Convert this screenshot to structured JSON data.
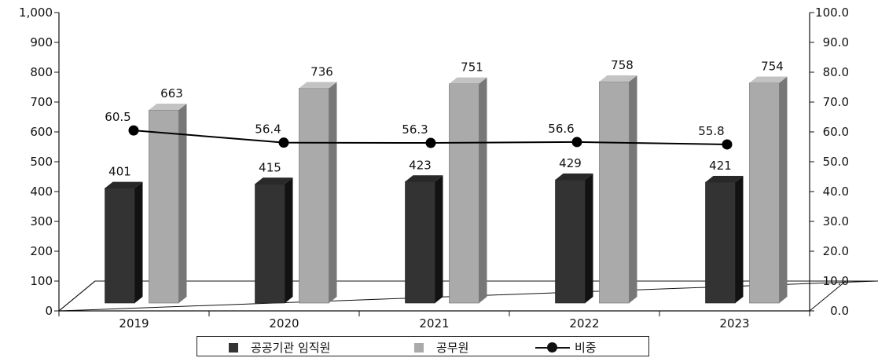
{
  "chart_data": {
    "type": "bar",
    "categories": [
      "2019",
      "2020",
      "2021",
      "2022",
      "2023"
    ],
    "series": [
      {
        "name": "공공기관 임직원",
        "kind": "bar",
        "axis": "left",
        "color": "#333333",
        "values": [
          401,
          415,
          423,
          429,
          421
        ]
      },
      {
        "name": "공무원",
        "kind": "bar",
        "axis": "left",
        "color": "#aaaaaa",
        "values": [
          663,
          736,
          751,
          758,
          754
        ]
      },
      {
        "name": "비중",
        "kind": "line",
        "axis": "right",
        "color": "#000000",
        "values": [
          60.5,
          56.4,
          56.3,
          56.6,
          55.8
        ]
      }
    ],
    "y_left": {
      "min": 0,
      "max": 1000,
      "step": 100,
      "tick_labels": [
        "0",
        "100",
        "200",
        "300",
        "400",
        "500",
        "600",
        "700",
        "800",
        "900",
        "1,000"
      ]
    },
    "y_right": {
      "min": 0,
      "max": 100,
      "step": 10,
      "tick_labels": [
        "0.0",
        "10.0",
        "20.0",
        "30.0",
        "40.0",
        "50.0",
        "60.0",
        "70.0",
        "80.0",
        "90.0",
        "100.0"
      ]
    },
    "line_labels": [
      "60.5",
      "56.4",
      "56.3",
      "56.6",
      "55.8"
    ],
    "legend_position": "bottom",
    "grid": false,
    "style": "3d-column"
  }
}
